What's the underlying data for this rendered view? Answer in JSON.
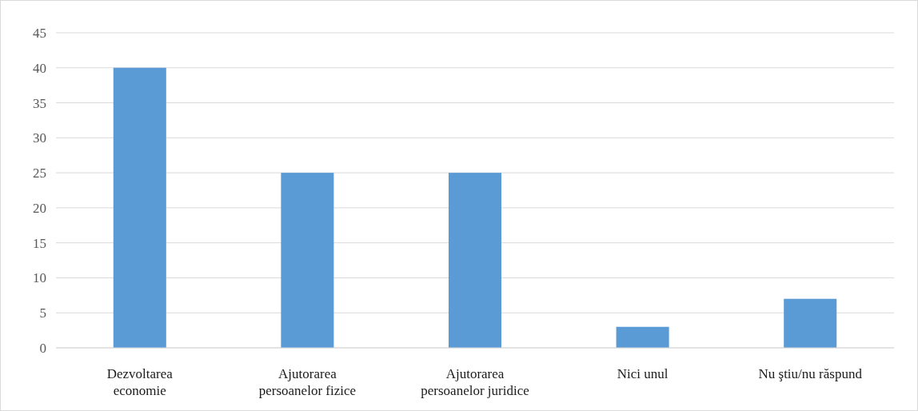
{
  "chart_data": {
    "type": "bar",
    "categories": [
      "Dezvoltarea economie",
      "Ajutorarea persoanelor fizice",
      "Ajutorarea persoanelor juridice",
      "Nici unul",
      "Nu ştiu/nu răspund"
    ],
    "values": [
      40,
      25,
      25,
      3,
      7
    ],
    "color": "#5b9bd5",
    "ylim": [
      0,
      45
    ],
    "yticks": [
      0,
      5,
      10,
      15,
      20,
      25,
      30,
      35,
      40,
      45
    ],
    "grid": "y"
  }
}
